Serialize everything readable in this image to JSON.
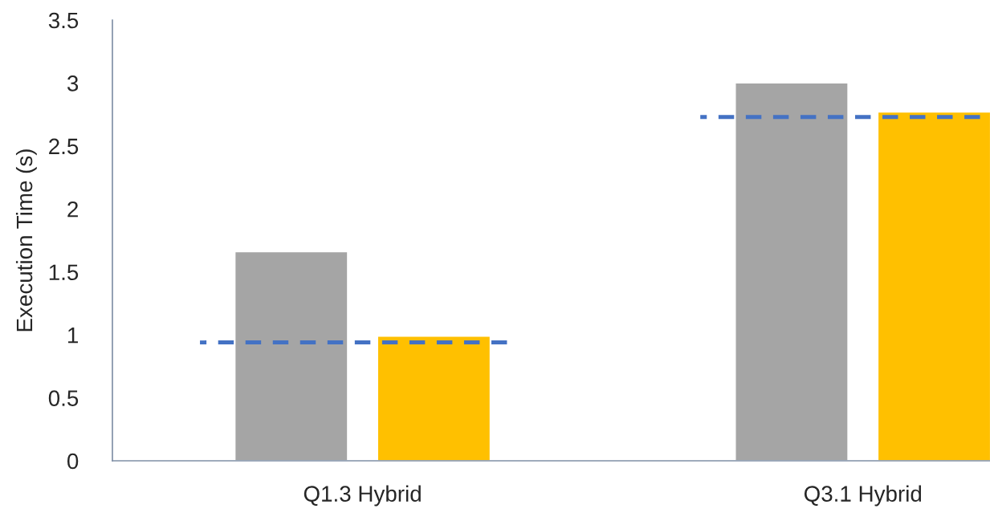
{
  "chart_data": {
    "type": "bar",
    "ylabel": "Execution Time (s)",
    "categories": [
      "Q1.3 Hybrid",
      "Q3.1 Hybrid"
    ],
    "series": [
      {
        "color": "#a5a5a5",
        "values": [
          1.66,
          3.0
        ]
      },
      {
        "color": "#ffc000",
        "values": [
          0.99,
          2.77
        ]
      }
    ],
    "ref_lines": [
      {
        "axis": "y",
        "value": 0.94,
        "color": "#4472c4",
        "line_style": "dashed"
      },
      {
        "axis": "y",
        "value": 2.73,
        "color": "#4472c4",
        "line_style": "dashed"
      }
    ],
    "ylim": [
      0,
      3.5
    ],
    "yticks": [
      0,
      0.5,
      1,
      1.5,
      2,
      2.5,
      3,
      3.5
    ],
    "grid": false,
    "legend": false
  }
}
